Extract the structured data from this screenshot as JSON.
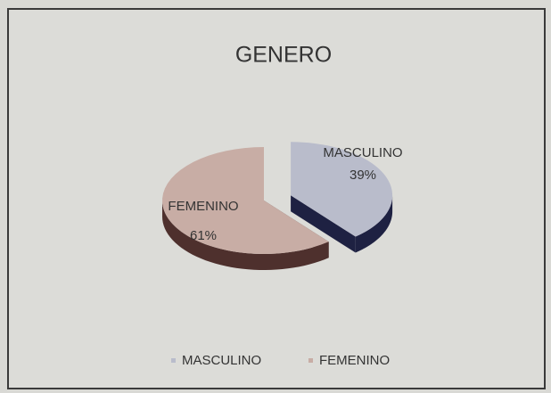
{
  "chart_data": {
    "type": "pie3d",
    "title": "GENERO",
    "categories": [
      "MASCULINO",
      "FEMENINO"
    ],
    "values": [
      39,
      61
    ],
    "value_labels": [
      "39%",
      "61%"
    ],
    "colors": [
      "#b9bccb",
      "#c8ada5"
    ],
    "side_colors": [
      "#1e2142",
      "#4e302d"
    ],
    "legend": "bottom"
  }
}
